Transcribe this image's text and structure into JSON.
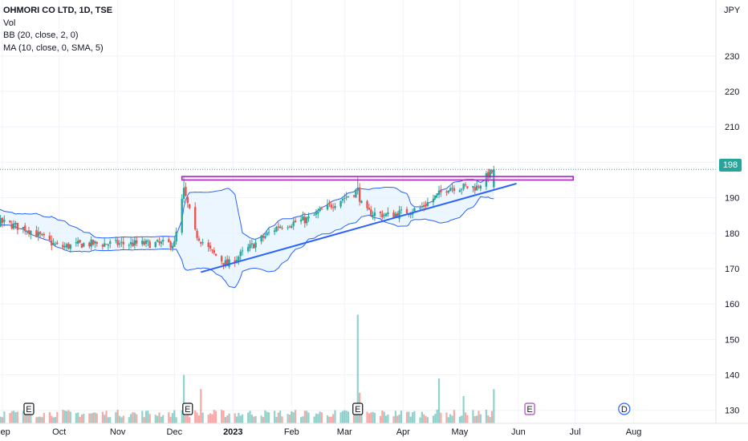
{
  "legend": {
    "symbol": "OHMORI CO LTD, 1D, TSE",
    "vol": "Vol",
    "bb": "BB (20, close, 2, 0)",
    "ma": "MA (10, close, 0, SMA, 5)"
  },
  "currency": "JPY",
  "last_price_tag": "198",
  "colors": {
    "up": "#26a69a",
    "down": "#ef5350",
    "bb_fill": "#e3f2fd",
    "bb_line": "#2962ff",
    "resistance": "#9c27b0",
    "trendline": "#2962ff",
    "tag": "#26a69a"
  },
  "chart_data": {
    "type": "candlestick",
    "ylim": [
      127,
      244
    ],
    "y_ticks": [
      130,
      140,
      150,
      160,
      170,
      180,
      190,
      200,
      210,
      220,
      230
    ],
    "x_labels": [
      "Sep",
      "Oct",
      "Nov",
      "Dec",
      "2023",
      "Feb",
      "Mar",
      "Apr",
      "May",
      "Jun",
      "Jul",
      "Aug"
    ],
    "resistance_zone": [
      195,
      196
    ],
    "trendline": {
      "from": [
        "2022-12-15",
        169
      ],
      "to": [
        "2023-05-31",
        194
      ]
    },
    "last_price": 198,
    "price_path": [
      [
        "2022-08-01",
        186
      ],
      [
        "2022-08-15",
        184
      ],
      [
        "2022-09-01",
        183
      ],
      [
        "2022-09-15",
        181
      ],
      [
        "2022-10-01",
        176
      ],
      [
        "2022-10-15",
        177
      ],
      [
        "2022-11-01",
        177
      ],
      [
        "2022-11-15",
        177
      ],
      [
        "2022-12-01",
        177
      ],
      [
        "2022-12-06",
        192
      ],
      [
        "2022-12-12",
        180
      ],
      [
        "2022-12-20",
        175
      ],
      [
        "2022-12-29",
        171
      ],
      [
        "2023-01-10",
        176
      ],
      [
        "2023-01-25",
        182
      ],
      [
        "2023-02-10",
        184
      ],
      [
        "2023-02-25",
        189
      ],
      [
        "2023-03-08",
        192
      ],
      [
        "2023-03-11",
        186
      ],
      [
        "2023-03-25",
        185
      ],
      [
        "2023-04-10",
        187
      ],
      [
        "2023-04-25",
        193
      ],
      [
        "2023-05-10",
        193
      ],
      [
        "2023-05-19",
        198
      ]
    ],
    "volume_spikes": [
      [
        "2022-12-06",
        140
      ],
      [
        "2022-12-15",
        136
      ],
      [
        "2023-03-08",
        157
      ],
      [
        "2023-03-09",
        135
      ],
      [
        "2023-04-20",
        139
      ],
      [
        "2023-05-03",
        134
      ],
      [
        "2023-05-19",
        136
      ]
    ],
    "events": [
      {
        "label": "E",
        "date": "2022-09-15",
        "kind": "earnings"
      },
      {
        "label": "E",
        "date": "2022-12-08",
        "kind": "earnings"
      },
      {
        "label": "E",
        "date": "2023-03-08",
        "kind": "earnings"
      },
      {
        "label": "E",
        "date": "2023-06-07",
        "kind": "earnings-upcoming"
      },
      {
        "label": "D",
        "date": "2023-07-27",
        "kind": "dividend"
      }
    ]
  }
}
